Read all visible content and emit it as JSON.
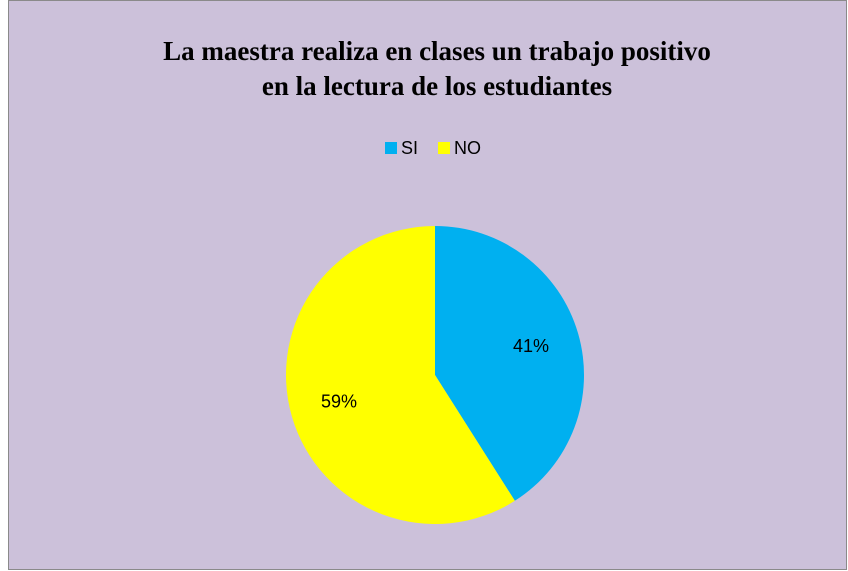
{
  "chart_data": {
    "type": "pie",
    "title": [
      "La maestra realiza en clases un trabajo positivo",
      "en la lectura de los estudiantes"
    ],
    "categories": [
      "SI",
      "NO"
    ],
    "values": [
      41,
      59
    ],
    "value_labels": [
      "41%",
      "59%"
    ],
    "colors": [
      "#00b0f0",
      "#ffff00"
    ],
    "legend": "top"
  }
}
